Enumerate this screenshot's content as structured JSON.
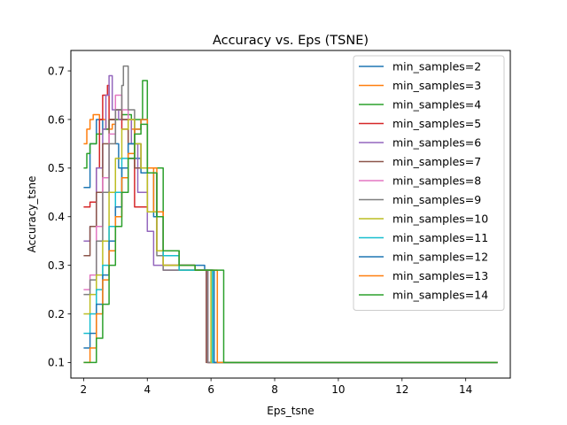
{
  "chart_data": {
    "type": "line",
    "title": "Accuracy vs. Eps (TSNE)",
    "xlabel": "Eps_tsne",
    "ylabel": "Accuracy_tsne",
    "xlim": [
      1.6,
      15.4
    ],
    "ylim": [
      0.068,
      0.742
    ],
    "xticks": [
      2,
      4,
      6,
      8,
      10,
      12,
      14
    ],
    "xtick_labels": [
      "2",
      "4",
      "6",
      "8",
      "10",
      "12",
      "14"
    ],
    "yticks": [
      0.1,
      0.2,
      0.3,
      0.4,
      0.5,
      0.6,
      0.7
    ],
    "ytick_labels": [
      "0.1",
      "0.2",
      "0.3",
      "0.4",
      "0.5",
      "0.6",
      "0.7"
    ],
    "grid": false,
    "legend_position": "top-right",
    "series": [
      {
        "name": "min_samples=2",
        "color": "#1f77b4",
        "x": [
          2.0,
          2.2,
          2.4,
          2.6,
          2.8,
          3.0,
          3.1,
          3.4,
          3.8,
          4.2,
          4.5,
          5.0,
          5.5,
          5.8,
          5.9,
          6.5,
          8,
          10,
          12,
          15
        ],
        "y": [
          0.46,
          0.55,
          0.6,
          0.58,
          0.6,
          0.55,
          0.5,
          0.52,
          0.49,
          0.4,
          0.33,
          0.3,
          0.3,
          0.29,
          0.1,
          0.1,
          0.1,
          0.1,
          0.1,
          0.1
        ]
      },
      {
        "name": "min_samples=3",
        "color": "#ff7f0e",
        "x": [
          2.0,
          2.1,
          2.2,
          2.3,
          2.5,
          2.7,
          2.9,
          3.0,
          3.5,
          3.6,
          4.0,
          4.2,
          4.5,
          5.0,
          5.5,
          5.8,
          5.9,
          6.5,
          8,
          10,
          12,
          15
        ],
        "y": [
          0.55,
          0.58,
          0.6,
          0.61,
          0.6,
          0.58,
          0.59,
          0.6,
          0.58,
          0.5,
          0.5,
          0.41,
          0.3,
          0.3,
          0.29,
          0.29,
          0.1,
          0.1,
          0.1,
          0.1,
          0.1,
          0.1
        ]
      },
      {
        "name": "min_samples=4",
        "color": "#2ca02c",
        "x": [
          2.0,
          2.1,
          2.2,
          2.4,
          2.6,
          2.8,
          3.0,
          3.2,
          3.5,
          3.8,
          3.85,
          4.0,
          4.3,
          4.5,
          5.0,
          5.5,
          6.0,
          6.05,
          6.4,
          6.5,
          8,
          10,
          12,
          15
        ],
        "y": [
          0.5,
          0.53,
          0.55,
          0.57,
          0.58,
          0.6,
          0.6,
          0.61,
          0.6,
          0.6,
          0.68,
          0.5,
          0.5,
          0.33,
          0.3,
          0.29,
          0.29,
          0.1,
          0.1,
          0.1,
          0.1,
          0.1,
          0.1,
          0.1
        ]
      },
      {
        "name": "min_samples=5",
        "color": "#d62728",
        "x": [
          2.0,
          2.2,
          2.4,
          2.5,
          2.6,
          2.75,
          2.8,
          3.0,
          3.2,
          3.4,
          3.6,
          4.0,
          4.5,
          5.0,
          5.5,
          5.9,
          6.5,
          8,
          10,
          12,
          15
        ],
        "y": [
          0.42,
          0.43,
          0.5,
          0.6,
          0.65,
          0.67,
          0.6,
          0.62,
          0.58,
          0.52,
          0.42,
          0.41,
          0.3,
          0.3,
          0.29,
          0.1,
          0.1,
          0.1,
          0.1,
          0.1,
          0.1
        ]
      },
      {
        "name": "min_samples=6",
        "color": "#9467bd",
        "x": [
          2.0,
          2.2,
          2.4,
          2.6,
          2.7,
          2.8,
          2.9,
          3.1,
          3.3,
          3.5,
          3.7,
          4.0,
          4.2,
          4.5,
          5.0,
          5.5,
          5.9,
          6.5,
          8,
          10,
          12,
          15
        ],
        "y": [
          0.35,
          0.38,
          0.5,
          0.58,
          0.65,
          0.69,
          0.62,
          0.6,
          0.6,
          0.55,
          0.45,
          0.37,
          0.3,
          0.29,
          0.29,
          0.29,
          0.1,
          0.1,
          0.1,
          0.1,
          0.1,
          0.1
        ]
      },
      {
        "name": "min_samples=7",
        "color": "#8c564b",
        "x": [
          2.0,
          2.2,
          2.4,
          2.6,
          2.8,
          3.0,
          3.2,
          3.4,
          3.6,
          4.0,
          4.3,
          4.5,
          5.0,
          5.5,
          5.85,
          6.5,
          8,
          10,
          12,
          15
        ],
        "y": [
          0.32,
          0.38,
          0.45,
          0.55,
          0.6,
          0.62,
          0.6,
          0.55,
          0.5,
          0.41,
          0.33,
          0.3,
          0.29,
          0.29,
          0.1,
          0.1,
          0.1,
          0.1,
          0.1,
          0.1
        ]
      },
      {
        "name": "min_samples=8",
        "color": "#e377c2",
        "x": [
          2.0,
          2.2,
          2.4,
          2.6,
          2.8,
          3.0,
          3.2,
          3.4,
          3.6,
          3.8,
          4.0,
          4.3,
          4.5,
          5.0,
          5.5,
          5.9,
          6.5,
          8,
          10,
          12,
          15
        ],
        "y": [
          0.25,
          0.28,
          0.38,
          0.48,
          0.57,
          0.65,
          0.62,
          0.6,
          0.55,
          0.5,
          0.41,
          0.33,
          0.29,
          0.29,
          0.29,
          0.1,
          0.1,
          0.1,
          0.1,
          0.1,
          0.1
        ]
      },
      {
        "name": "min_samples=9",
        "color": "#7f7f7f",
        "x": [
          2.0,
          2.2,
          2.4,
          2.6,
          2.8,
          3.0,
          3.2,
          3.25,
          3.4,
          3.6,
          3.8,
          4.0,
          4.3,
          4.5,
          5.0,
          5.5,
          5.9,
          6.5,
          8,
          10,
          12,
          15
        ],
        "y": [
          0.24,
          0.27,
          0.35,
          0.45,
          0.55,
          0.62,
          0.67,
          0.71,
          0.62,
          0.55,
          0.5,
          0.41,
          0.32,
          0.29,
          0.29,
          0.29,
          0.1,
          0.1,
          0.1,
          0.1,
          0.1,
          0.1
        ]
      },
      {
        "name": "min_samples=10",
        "color": "#bcbd22",
        "x": [
          2.0,
          2.2,
          2.4,
          2.6,
          2.8,
          3.0,
          3.2,
          3.4,
          3.6,
          3.8,
          4.0,
          4.3,
          4.5,
          5.0,
          5.5,
          6.0,
          6.5,
          8,
          10,
          12,
          15
        ],
        "y": [
          0.2,
          0.24,
          0.28,
          0.35,
          0.45,
          0.52,
          0.58,
          0.6,
          0.55,
          0.5,
          0.41,
          0.33,
          0.3,
          0.29,
          0.29,
          0.1,
          0.1,
          0.1,
          0.1,
          0.1,
          0.1
        ]
      },
      {
        "name": "min_samples=11",
        "color": "#17becf",
        "x": [
          2.0,
          2.2,
          2.4,
          2.6,
          2.8,
          3.0,
          3.2,
          3.4,
          3.6,
          3.8,
          4.0,
          4.3,
          4.5,
          5.0,
          5.5,
          6.0,
          6.05,
          6.5,
          8,
          10,
          12,
          15
        ],
        "y": [
          0.16,
          0.2,
          0.25,
          0.3,
          0.38,
          0.45,
          0.52,
          0.55,
          0.58,
          0.6,
          0.49,
          0.4,
          0.32,
          0.29,
          0.29,
          0.29,
          0.1,
          0.1,
          0.1,
          0.1,
          0.1,
          0.1
        ]
      },
      {
        "name": "min_samples=12",
        "color": "#1f77b4",
        "x": [
          2.0,
          2.2,
          2.4,
          2.6,
          2.8,
          3.0,
          3.2,
          3.4,
          3.6,
          3.8,
          4.0,
          4.3,
          4.5,
          5.0,
          5.5,
          6.0,
          6.1,
          6.5,
          8,
          10,
          12,
          15
        ],
        "y": [
          0.13,
          0.16,
          0.22,
          0.28,
          0.35,
          0.42,
          0.5,
          0.55,
          0.58,
          0.6,
          0.49,
          0.4,
          0.33,
          0.3,
          0.29,
          0.29,
          0.1,
          0.1,
          0.1,
          0.1,
          0.1,
          0.1
        ]
      },
      {
        "name": "min_samples=13",
        "color": "#ff7f0e",
        "x": [
          2.0,
          2.2,
          2.4,
          2.6,
          2.8,
          3.0,
          3.2,
          3.4,
          3.6,
          3.8,
          4.0,
          4.3,
          4.5,
          5.0,
          5.5,
          6.0,
          6.2,
          6.5,
          8,
          10,
          12,
          15
        ],
        "y": [
          0.1,
          0.13,
          0.2,
          0.27,
          0.33,
          0.4,
          0.48,
          0.53,
          0.58,
          0.6,
          0.5,
          0.41,
          0.33,
          0.3,
          0.29,
          0.29,
          0.1,
          0.1,
          0.1,
          0.1,
          0.1,
          0.1
        ]
      },
      {
        "name": "min_samples=14",
        "color": "#2ca02c",
        "x": [
          2.0,
          2.2,
          2.4,
          2.6,
          2.8,
          3.0,
          3.2,
          3.4,
          3.6,
          3.8,
          4.0,
          4.3,
          4.5,
          5.0,
          5.5,
          6.0,
          6.4,
          6.5,
          8,
          10,
          12,
          15
        ],
        "y": [
          0.1,
          0.1,
          0.15,
          0.22,
          0.3,
          0.38,
          0.45,
          0.52,
          0.57,
          0.59,
          0.49,
          0.4,
          0.33,
          0.3,
          0.29,
          0.29,
          0.1,
          0.1,
          0.1,
          0.1,
          0.1,
          0.1
        ]
      }
    ]
  }
}
